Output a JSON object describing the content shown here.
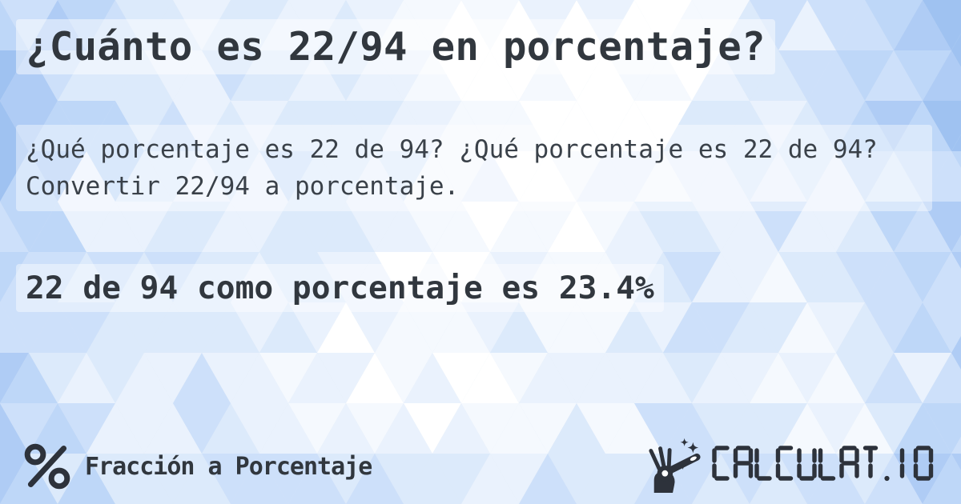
{
  "page": {
    "title": "¿Cuánto es 22/94 en porcentaje?",
    "description": "¿Qué porcentaje es 22 de 94? ¿Qué porcentaje es 22 de 94? Convertir 22/94 a porcentaje.",
    "answer": "22 de 94 como porcentaje es 23.4%"
  },
  "footer": {
    "category": {
      "icon": "percent-icon",
      "label": "Fracción a Porcentaje"
    },
    "brand": {
      "icon": "magic-wand-hand-icon",
      "wordmark": "CALCULAT.IO",
      "wordmark_style": "seven-segment"
    }
  },
  "colors": {
    "text_dark": "#31373e",
    "icon_dark": "#2d323b",
    "band_white": "rgba(255,255,255,0.45)",
    "bg_palette": [
      "#ffffff",
      "#f5f9fe",
      "#eaf2fd",
      "#dceafb",
      "#cde0fa",
      "#bed7f8",
      "#afccf5",
      "#9fc2f1"
    ]
  }
}
